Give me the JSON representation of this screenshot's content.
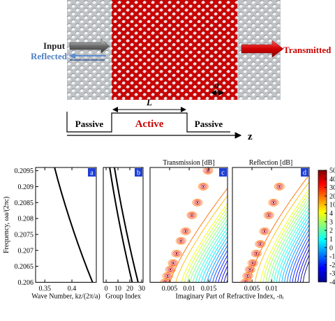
{
  "figure": {
    "input": "Input",
    "reflected": "Reflected",
    "transmitted": "Transmitted",
    "period": "a",
    "length": "L",
    "passive_left": "Passive",
    "active": "Active",
    "passive_right": "Passive",
    "axis": "z"
  },
  "chart_data": [
    {
      "type": "line",
      "panel_label": "a",
      "xlabel": "Wave Number, kz/(2π/a)",
      "ylabel": "Frequency, ωa/(2πc)",
      "xlim": [
        0.333,
        0.445
      ],
      "xticks": [
        0.35,
        0.4
      ],
      "ylim": [
        0.206,
        0.2096
      ],
      "yticks": [
        0.206,
        0.2065,
        0.207,
        0.2075,
        0.208,
        0.2085,
        0.209,
        0.2095
      ],
      "series": [
        {
          "color": "#000000",
          "x": [
            0.368,
            0.3742,
            0.3809,
            0.388,
            0.3954,
            0.4032,
            0.4113,
            0.4198,
            0.4287,
            0.438
          ],
          "values": [
            0.2096,
            0.2092,
            0.2088,
            0.2084,
            0.208,
            0.2076,
            0.2072,
            0.2068,
            0.2064,
            0.206
          ]
        }
      ]
    },
    {
      "type": "line",
      "panel_label": "b",
      "xlabel": "Group Index",
      "xlim": [
        -2.4,
        31.2
      ],
      "xticks": [
        0,
        10,
        20,
        30
      ],
      "ylim": [
        0.206,
        0.2096
      ],
      "series": [
        {
          "color": "#000000",
          "x": [
            3,
            4.72,
            6.53,
            8.44,
            10.45,
            12.57,
            14.78,
            17.09,
            19.5,
            22
          ],
          "values": [
            0.2096,
            0.2092,
            0.2088,
            0.2084,
            0.208,
            0.2076,
            0.2072,
            0.2068,
            0.2064,
            0.206
          ]
        },
        {
          "color": "#000000",
          "x": [
            7,
            8.83,
            10.75,
            12.77,
            14.9,
            17.13,
            19.45,
            21.87,
            24.38,
            27
          ],
          "values": [
            0.2096,
            0.2092,
            0.2088,
            0.2084,
            0.208,
            0.2076,
            0.2072,
            0.2068,
            0.2064,
            0.206
          ]
        }
      ]
    },
    {
      "type": "contour",
      "panel_label": "c",
      "title": "Transmission [dB]",
      "xlabel": "Imaginary Part of Refractive Index, -nᵢ",
      "xlim": [
        0,
        0.0198
      ],
      "xticks": [
        0.005,
        0.01,
        0.015
      ],
      "ylim": [
        0.206,
        0.2096
      ],
      "contour_levels": [
        -4,
        -3.5,
        -3,
        -2.5,
        -2,
        -1.5,
        -1,
        -0.5,
        0,
        0.5,
        1,
        1.5,
        2,
        2.5,
        3,
        3.5,
        4,
        10,
        20
      ],
      "resonances": {
        "x": [
          0.0148,
          0.0136,
          0.0121,
          0.0107,
          0.0091,
          0.0079,
          0.0068,
          0.0059,
          0.0052,
          0.0045,
          0.0039
        ],
        "y": [
          0.2095,
          0.209,
          0.2085,
          0.2081,
          0.2076,
          0.2073,
          0.2069,
          0.2066,
          0.2064,
          0.2062,
          0.206
        ]
      }
    },
    {
      "type": "contour",
      "panel_label": "d",
      "title": "Reflection [dB]",
      "xlim": [
        0,
        0.0196
      ],
      "xticks": [
        0.005,
        0.01
      ],
      "ylim": [
        0.206,
        0.2096
      ],
      "contour_levels": [
        -4,
        -3.5,
        -3,
        -2.5,
        -2,
        -1.5,
        -1,
        -0.5,
        0,
        0.5,
        1,
        1.5,
        2,
        2.5,
        3,
        3.5,
        4,
        10,
        20
      ],
      "resonances": {
        "x": [
          0.012,
          0.0105,
          0.0093,
          0.0082,
          0.0071,
          0.0061,
          0.0052,
          0.0045,
          0.0039,
          0.0034
        ],
        "y": [
          0.209,
          0.2085,
          0.2081,
          0.2076,
          0.2072,
          0.2069,
          0.2066,
          0.2064,
          0.2062,
          0.206
        ]
      }
    },
    {
      "type": "colorbar",
      "ticks": [
        50,
        40,
        30,
        20,
        10,
        4,
        3,
        2,
        1,
        0,
        -1,
        -2,
        -3,
        -4
      ],
      "colors": [
        "#800000",
        "#ff0000",
        "#ff8000",
        "#ffff00",
        "#80ff80",
        "#00ffff",
        "#0080ff",
        "#0000ff",
        "#00008f"
      ]
    }
  ]
}
